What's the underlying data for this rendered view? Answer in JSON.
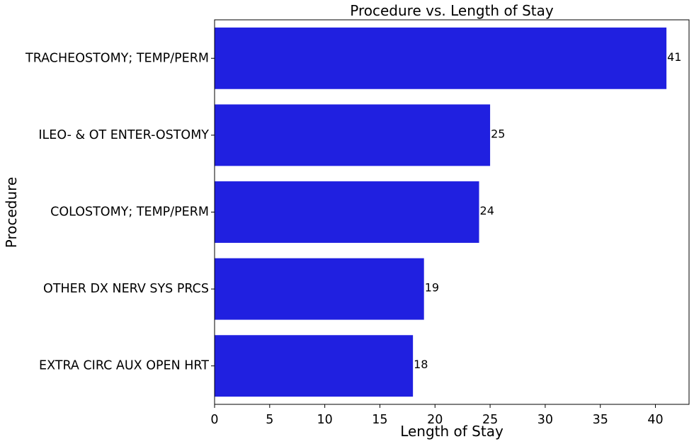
{
  "chart_data": {
    "type": "bar",
    "orientation": "horizontal",
    "title": "Procedure vs. Length of Stay",
    "xlabel": "Length of Stay",
    "ylabel": "Procedure",
    "categories": [
      "TRACHEOSTOMY; TEMP/PERM",
      "ILEO- & OT ENTER-OSTOMY",
      "COLOSTOMY; TEMP/PERM",
      "OTHER DX NERV SYS PRCS",
      "EXTRA CIRC AUX OPEN HRT"
    ],
    "values": [
      41,
      25,
      24,
      19,
      18
    ],
    "data_labels": [
      "41",
      "25",
      "24",
      "19",
      "18"
    ],
    "xlim": [
      0,
      43.05
    ],
    "xticks": [
      0,
      5,
      10,
      15,
      20,
      25,
      30,
      35,
      40
    ],
    "xtick_labels": [
      "0",
      "5",
      "10",
      "15",
      "20",
      "25",
      "30",
      "35",
      "40"
    ],
    "grid": false,
    "legend": "none",
    "bar_color": "#2020e0"
  }
}
